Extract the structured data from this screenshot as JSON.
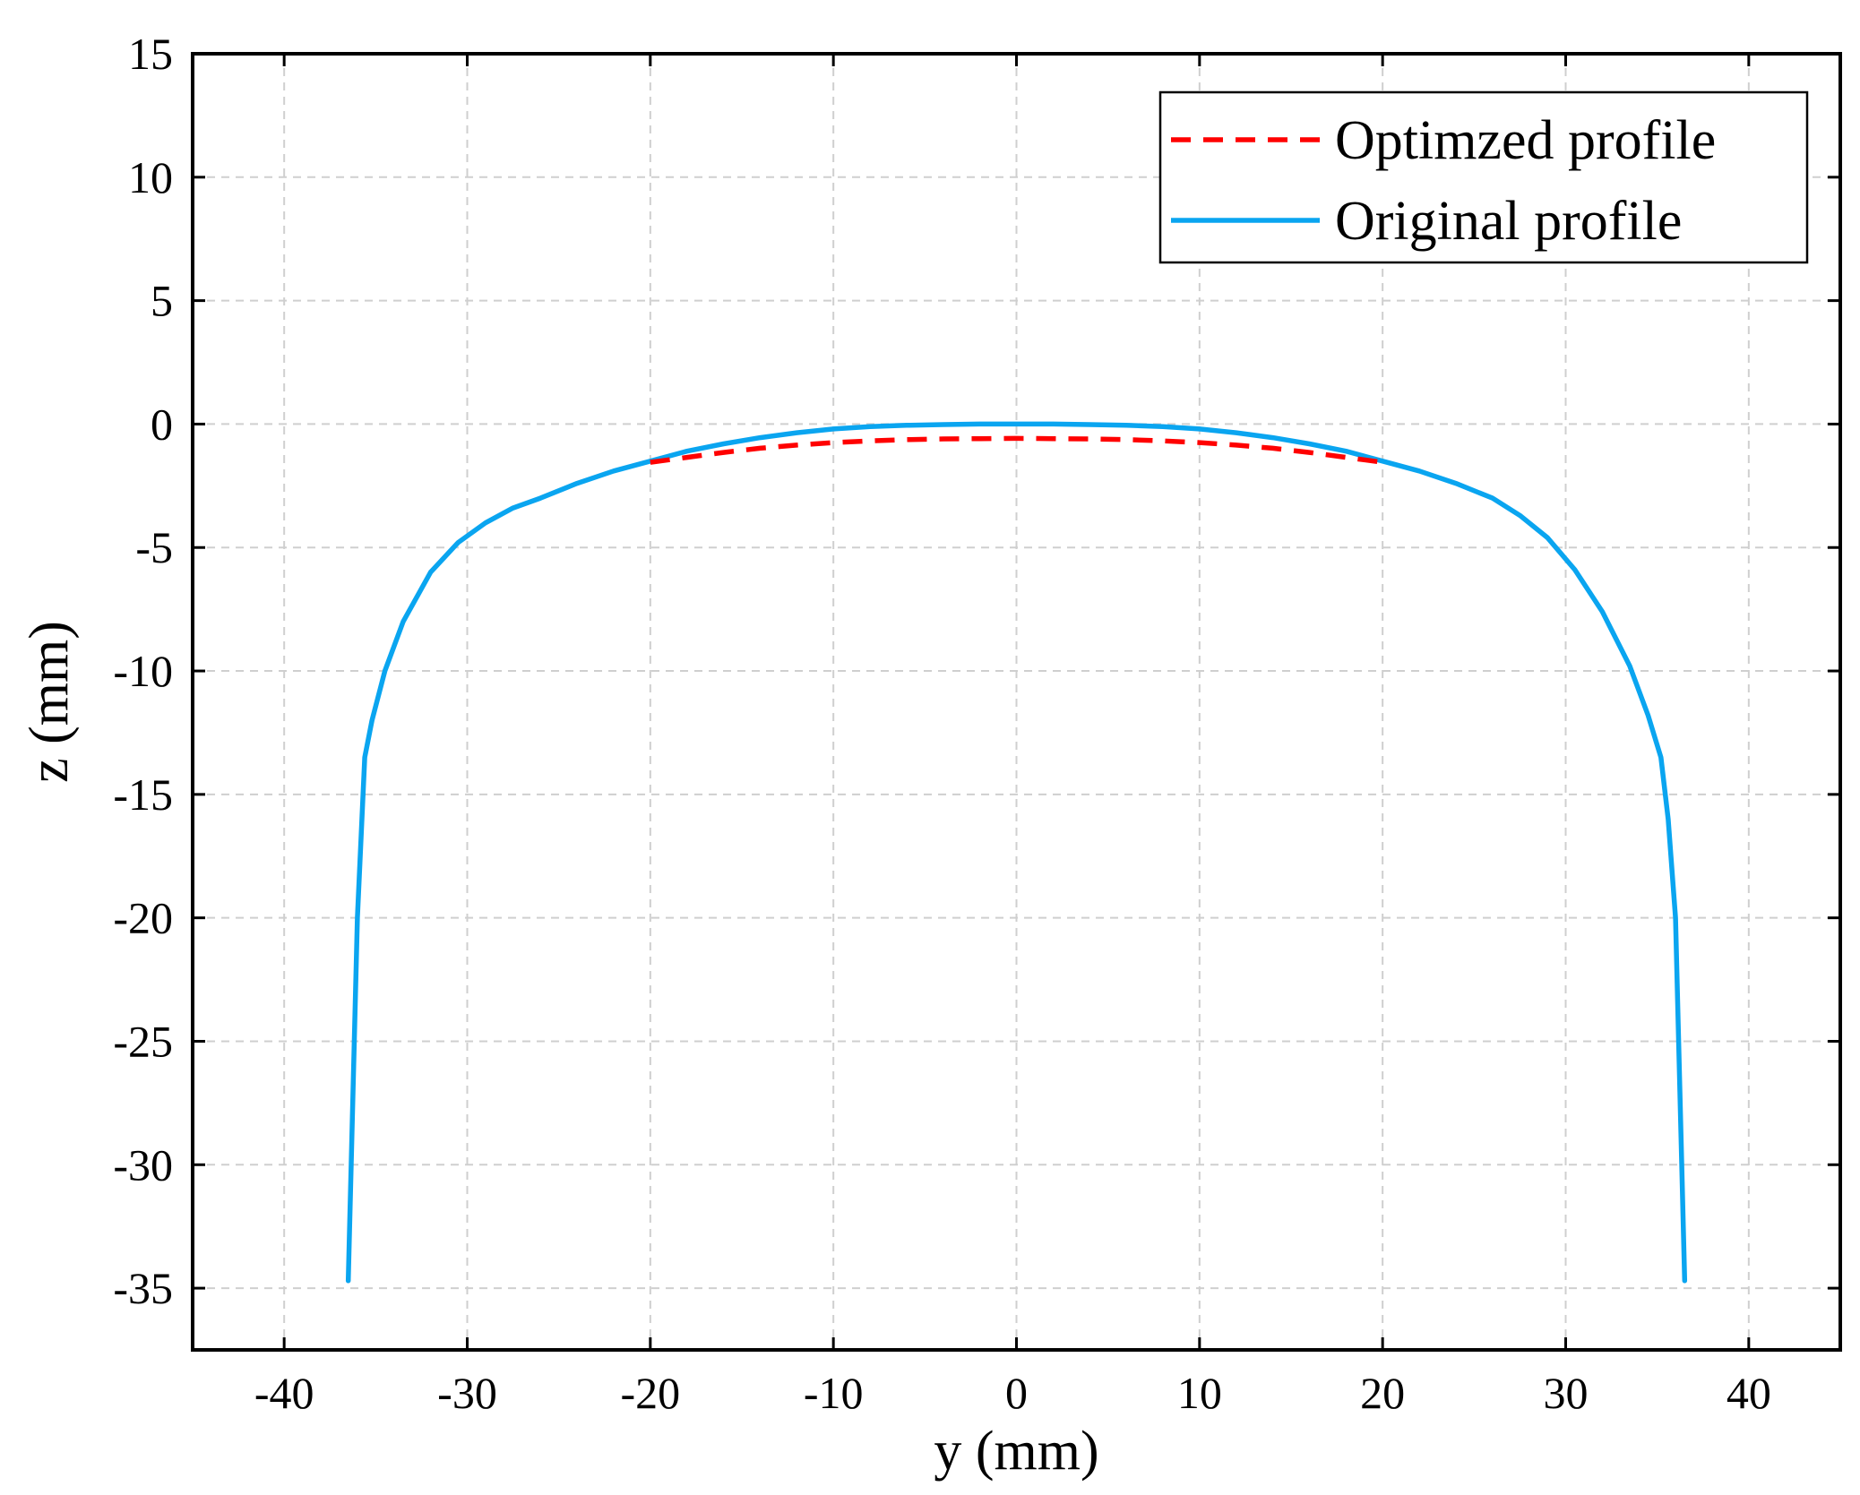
{
  "chart_data": {
    "type": "line",
    "title": "",
    "xlabel": "y (mm)",
    "ylabel": "z (mm)",
    "xlim": [
      -45,
      45
    ],
    "ylim": [
      -37.5,
      15
    ],
    "xticks": [
      -40,
      -30,
      -20,
      -10,
      0,
      10,
      20,
      30,
      40
    ],
    "yticks": [
      15,
      10,
      5,
      0,
      -5,
      -10,
      -15,
      -20,
      -25,
      -30,
      -35
    ],
    "xtick_labels": [
      "-40",
      "-30",
      "-20",
      "-10",
      "0",
      "10",
      "20",
      "30",
      "40"
    ],
    "ytick_labels": [
      "15",
      "10",
      "5",
      "0",
      "-5",
      "-10",
      "-15",
      "-20",
      "-25",
      "-30",
      "-35"
    ],
    "grid": true,
    "legend_position": "top-right",
    "series": [
      {
        "name": "Optimzed profile",
        "color": "#ff0000",
        "style": "dashed",
        "x": [
          -20,
          -18,
          -16,
          -14,
          -12,
          -10,
          -8,
          -6,
          -4,
          -2,
          0,
          2,
          4,
          6,
          8,
          10,
          12,
          14,
          16,
          18,
          20
        ],
        "y": [
          -1.55,
          -1.35,
          -1.15,
          -0.98,
          -0.85,
          -0.75,
          -0.68,
          -0.63,
          -0.6,
          -0.59,
          -0.58,
          -0.59,
          -0.6,
          -0.63,
          -0.68,
          -0.75,
          -0.85,
          -0.98,
          -1.15,
          -1.35,
          -1.55
        ]
      },
      {
        "name": "Original profile",
        "color": "#0aa5f0",
        "style": "solid",
        "x": [
          -36.5,
          -36.0,
          -35.6,
          -35.2,
          -34.5,
          -33.5,
          -32.0,
          -30.5,
          -29.0,
          -27.5,
          -26.0,
          -24.0,
          -22.0,
          -20.0,
          -18.0,
          -16.0,
          -14.0,
          -12.0,
          -10.0,
          -8.0,
          -6.0,
          -4.0,
          -2.0,
          0.0,
          2.0,
          4.0,
          6.0,
          8.0,
          10.0,
          12.0,
          14.0,
          16.0,
          18.0,
          20.0,
          22.0,
          24.0,
          26.0,
          27.5,
          29.0,
          30.5,
          32.0,
          33.5,
          34.5,
          35.2,
          35.6,
          36.0,
          36.5
        ],
        "y": [
          -34.7,
          -20.0,
          -13.5,
          -12.0,
          -10.0,
          -8.0,
          -6.0,
          -4.8,
          -4.0,
          -3.4,
          -3.0,
          -2.4,
          -1.9,
          -1.5,
          -1.1,
          -0.8,
          -0.55,
          -0.35,
          -0.2,
          -0.1,
          -0.05,
          -0.02,
          0.0,
          0.0,
          0.0,
          -0.02,
          -0.05,
          -0.1,
          -0.2,
          -0.35,
          -0.55,
          -0.8,
          -1.1,
          -1.5,
          -1.9,
          -2.4,
          -3.0,
          -3.7,
          -4.6,
          -5.9,
          -7.6,
          -9.8,
          -11.8,
          -13.5,
          -16.0,
          -20.0,
          -34.7
        ]
      }
    ]
  }
}
